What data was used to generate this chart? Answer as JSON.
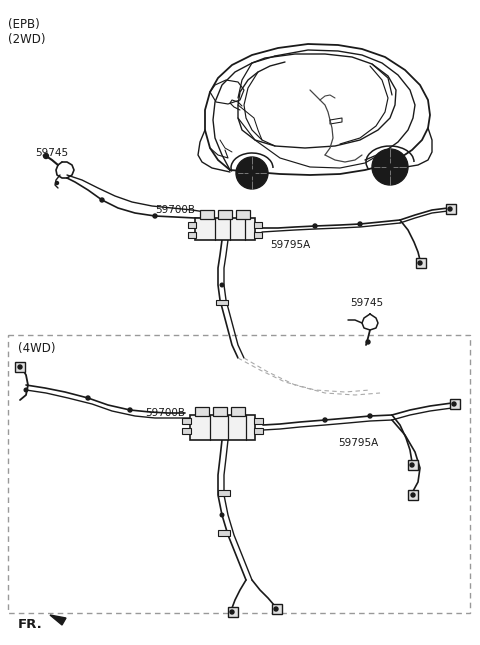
{
  "bg_color": "#ffffff",
  "line_color": "#1a1a1a",
  "label_color": "#1a1a1a",
  "dashed_box_color": "#999999",
  "labels": {
    "epb_2wd": "(EPB)\n(2WD)",
    "4wd": "(4WD)",
    "fr": "FR.",
    "part_59745_1": "59745",
    "part_59700B_1": "59700B",
    "part_59795A_1": "59795A",
    "part_59745_2": "59745",
    "part_59700B_2": "59700B",
    "part_59795A_2": "59795A"
  },
  "fig_width": 4.8,
  "fig_height": 6.45,
  "dpi": 100
}
